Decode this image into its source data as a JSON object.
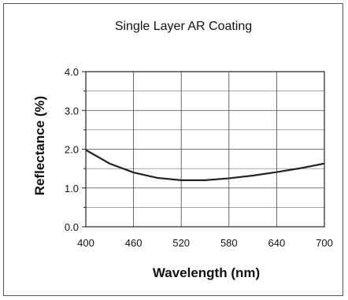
{
  "chart_data": {
    "type": "line",
    "title": "Single Layer AR Coating",
    "xlabel": "Wavelength (nm)",
    "ylabel": "Reflectance (%)",
    "xlim": [
      400,
      700
    ],
    "ylim": [
      0.0,
      4.0
    ],
    "x_ticks": [
      "400",
      "460",
      "520",
      "580",
      "640",
      "700"
    ],
    "y_ticks": [
      "0.0",
      "1.0",
      "2.0",
      "3.0",
      "4.0"
    ],
    "grid": true,
    "series": [
      {
        "x": [
          400,
          430,
          460,
          490,
          520,
          550,
          580,
          610,
          640,
          670,
          700
        ],
        "y": [
          1.98,
          1.63,
          1.4,
          1.26,
          1.2,
          1.2,
          1.25,
          1.32,
          1.41,
          1.51,
          1.63
        ]
      }
    ]
  }
}
